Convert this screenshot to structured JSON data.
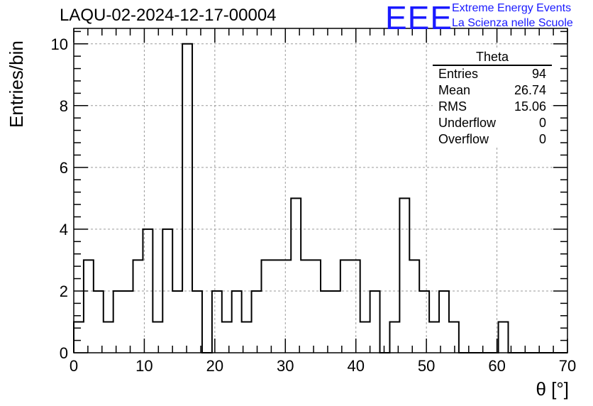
{
  "title": "LAQU-02-2024-12-17-00004",
  "logo": {
    "mark": "EEE",
    "line1": "Extreme Energy Events",
    "line2": "La Scienza nelle Scuole",
    "color": "#1a1aff"
  },
  "stats_box": {
    "title": "Theta",
    "rows": [
      {
        "label": "Entries",
        "value": "94"
      },
      {
        "label": "Mean",
        "value": "26.74"
      },
      {
        "label": "RMS",
        "value": "15.06"
      },
      {
        "label": "Underflow",
        "value": "0"
      },
      {
        "label": "Overflow",
        "value": "0"
      }
    ]
  },
  "chart_data": {
    "type": "bar",
    "title": "LAQU-02-2024-12-17-00004",
    "xlabel": "θ [°]",
    "ylabel": "Entries/bin",
    "xlim": [
      0,
      70
    ],
    "ylim": [
      0,
      10.5
    ],
    "grid": true,
    "bin_width": 1.4,
    "x_ticks": [
      0,
      10,
      20,
      30,
      40,
      50,
      60,
      70
    ],
    "y_ticks": [
      0,
      2,
      4,
      6,
      8,
      10
    ],
    "values": [
      1,
      3,
      2,
      1,
      2,
      2,
      3,
      4,
      1,
      4,
      2,
      10,
      2,
      0,
      2,
      1,
      2,
      1,
      2,
      3,
      3,
      3,
      5,
      3,
      3,
      2,
      2,
      3,
      3,
      1,
      2,
      0,
      1,
      5,
      3,
      2,
      1,
      2,
      1,
      0,
      0,
      0,
      0,
      1,
      0,
      0,
      0,
      0,
      0,
      0
    ]
  }
}
